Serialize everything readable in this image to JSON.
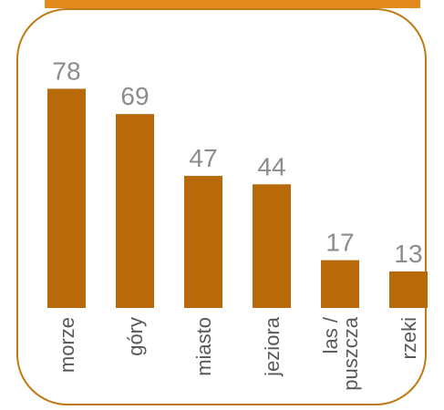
{
  "theme": {
    "frame_color": "#c07a14",
    "header_bar_color": "#e38a1d",
    "bar_color": "#b8690a",
    "value_label_color": "#8c8c8c",
    "category_label_color": "#595959",
    "background": "#ffffff"
  },
  "chart_data": {
    "type": "bar",
    "categories": [
      [
        "morze"
      ],
      [
        "góry"
      ],
      [
        "miasto"
      ],
      [
        "jeziora"
      ],
      [
        "las /",
        "puszcza"
      ],
      [
        "rzeki"
      ]
    ],
    "values": [
      78,
      69,
      47,
      44,
      17,
      13
    ],
    "ylim": [
      0,
      95
    ],
    "grid": false,
    "legend": "none",
    "data_labels": true,
    "xlabel_orientation": "vertical"
  }
}
